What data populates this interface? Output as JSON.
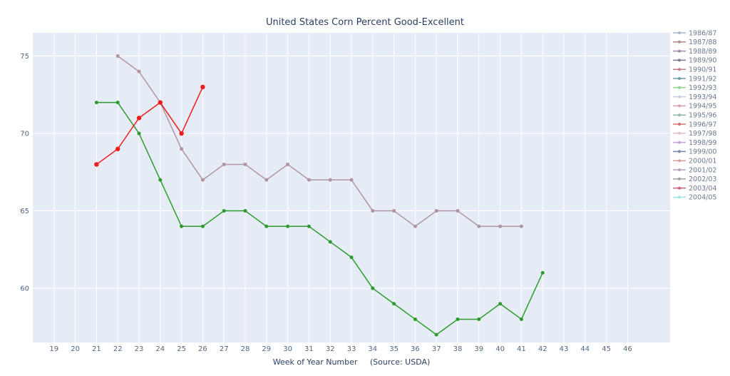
{
  "chart_data": {
    "type": "line",
    "title": "United States Corn Percent Good-Excellent",
    "xlabel": "Week of Year Number     (Source: USDA)",
    "ylabel": "",
    "xlim": [
      18,
      48
    ],
    "ylim": [
      56.5,
      76.5
    ],
    "xticks": [
      19,
      20,
      21,
      22,
      23,
      24,
      25,
      26,
      27,
      28,
      29,
      30,
      31,
      32,
      33,
      34,
      35,
      36,
      37,
      38,
      39,
      40,
      41,
      42,
      43,
      44,
      45,
      46
    ],
    "yticks": [
      60,
      65,
      70,
      75
    ],
    "grid": true,
    "legend_position": "right",
    "legend": [
      {
        "label": "1986/87",
        "color": "#aab7d4"
      },
      {
        "label": "1987/88",
        "color": "#b38a8a"
      },
      {
        "label": "1988/89",
        "color": "#a08aa8"
      },
      {
        "label": "1989/90",
        "color": "#7a7a8a"
      },
      {
        "label": "1990/91",
        "color": "#c47a8a"
      },
      {
        "label": "1991/92",
        "color": "#6f9aa8"
      },
      {
        "label": "1992/93",
        "color": "#8fd48f"
      },
      {
        "label": "1993/94",
        "color": "#c8cfe0"
      },
      {
        "label": "1994/95",
        "color": "#d4a0b0"
      },
      {
        "label": "1995/96",
        "color": "#8fb8a0"
      },
      {
        "label": "1996/97",
        "color": "#d07070"
      },
      {
        "label": "1997/98",
        "color": "#e0c0d0"
      },
      {
        "label": "1998/99",
        "color": "#c8a0d8"
      },
      {
        "label": "1999/00",
        "color": "#7a8aa8"
      },
      {
        "label": "2000/01",
        "color": "#d8a0a0"
      },
      {
        "label": "2001/02",
        "color": "#b8a0c0"
      },
      {
        "label": "2002/03",
        "color": "#a0a0a0"
      },
      {
        "label": "2003/04",
        "color": "#c8607a"
      },
      {
        "label": "2004/05",
        "color": "#9fe8e0"
      }
    ],
    "series": [
      {
        "color": "#b0959f",
        "marker_size": 2.5,
        "x": [
          22,
          23,
          24,
          25,
          26,
          27,
          28,
          29,
          30,
          31,
          32,
          33,
          34,
          35,
          36,
          37,
          38,
          39,
          40,
          41
        ],
        "y": [
          75,
          74,
          72,
          69,
          67,
          68,
          68,
          67,
          68,
          67,
          67,
          67,
          65,
          65,
          64,
          65,
          65,
          64,
          64,
          64
        ]
      },
      {
        "color": "#2e9a2e",
        "marker_size": 2.5,
        "x": [
          21,
          22,
          23,
          24,
          25,
          26,
          27,
          28,
          29,
          30,
          31,
          32,
          33,
          34,
          35,
          36,
          37,
          38,
          39,
          40,
          41,
          42
        ],
        "y": [
          72,
          72,
          70,
          67,
          64,
          64,
          65,
          65,
          64,
          64,
          64,
          63,
          62,
          60,
          59,
          58,
          57,
          58,
          58,
          59,
          58,
          61
        ]
      },
      {
        "color": "#ee1c1c",
        "marker_size": 3.2,
        "x": [
          21,
          22,
          23,
          24,
          25,
          26
        ],
        "y": [
          68,
          69,
          71,
          72,
          70,
          73
        ]
      }
    ]
  }
}
